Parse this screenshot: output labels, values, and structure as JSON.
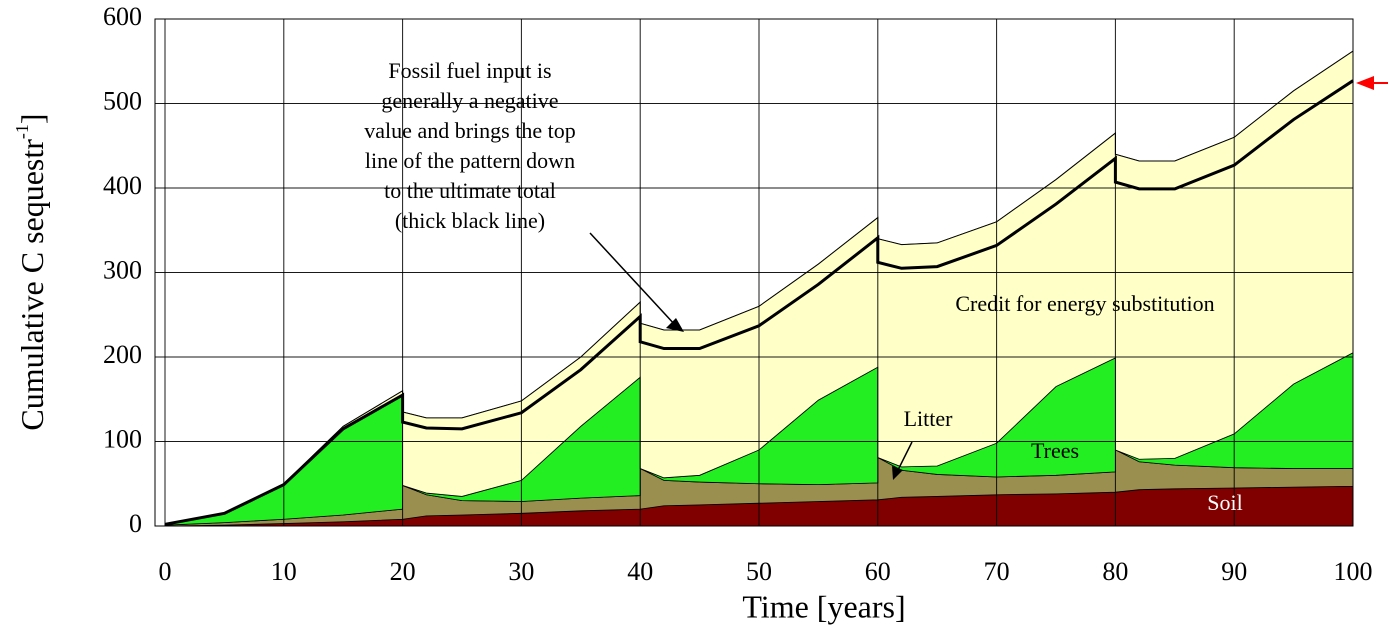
{
  "chart_data": {
    "type": "stacked_area",
    "xlabel": "Time [years]",
    "ylabel": "Cumulative C sequestr",
    "ylabel_sup": "-1",
    "ylabel_end": "]",
    "annotation": [
      "Fossil fuel input is",
      "generally a negative",
      "value and brings the top",
      "line of the pattern down",
      "to the ultimate total",
      "(thick black line)"
    ],
    "x": [
      0,
      5,
      10,
      15,
      20,
      20,
      22,
      25,
      30,
      35,
      40,
      40,
      42,
      45,
      50,
      55,
      60,
      60,
      62,
      65,
      70,
      75,
      80,
      80,
      82,
      85,
      90,
      95,
      100
    ],
    "series": [
      {
        "name": "Soil",
        "color": "#800000",
        "values": [
          0,
          1,
          3,
          5,
          8,
          8,
          12,
          13,
          15,
          18,
          20,
          20,
          24,
          25,
          27,
          29,
          31,
          31,
          34,
          35,
          37,
          38,
          40,
          40,
          43,
          44,
          45,
          46,
          47
        ]
      },
      {
        "name": "Litter",
        "color": "#9a8f4e",
        "values": [
          1,
          3,
          5,
          8,
          12,
          40,
          25,
          17,
          14,
          15,
          16,
          48,
          30,
          27,
          23,
          20,
          20,
          50,
          32,
          26,
          21,
          22,
          24,
          50,
          33,
          28,
          24,
          22,
          21
        ]
      },
      {
        "name": "Trees",
        "color": "#22ee22",
        "values": [
          1,
          10,
          42,
          102,
          137,
          0,
          2,
          5,
          25,
          85,
          140,
          0,
          3,
          8,
          40,
          100,
          137,
          0,
          4,
          10,
          40,
          105,
          135,
          0,
          3,
          8,
          40,
          100,
          137
        ]
      },
      {
        "name": "Credit for energy substitution",
        "color": "#ffffc8",
        "values": [
          0,
          1,
          0,
          3,
          3,
          87,
          89,
          93,
          94,
          82,
          89,
          172,
          175,
          172,
          170,
          161,
          177,
          259,
          263,
          264,
          262,
          245,
          266,
          350,
          353,
          352,
          351,
          347,
          357
        ]
      },
      {
        "color": "#ffffc8",
        "values": [
          0,
          0,
          -1,
          -3,
          -5,
          -12,
          -12,
          -13,
          -14,
          -15,
          -17,
          -22,
          -22,
          -22,
          -23,
          -24,
          -24,
          -28,
          -28,
          -28,
          -28,
          -29,
          -30,
          -33,
          -33,
          -33,
          -33,
          -34,
          -35
        ]
      }
    ],
    "xlim": [
      0,
      100
    ],
    "xticks": [
      0,
      10,
      20,
      30,
      40,
      50,
      60,
      70,
      80,
      90,
      100
    ],
    "ylim": [
      0,
      600
    ],
    "yticks": [
      0,
      100,
      200,
      300,
      400,
      500,
      600
    ],
    "grid": true
  }
}
